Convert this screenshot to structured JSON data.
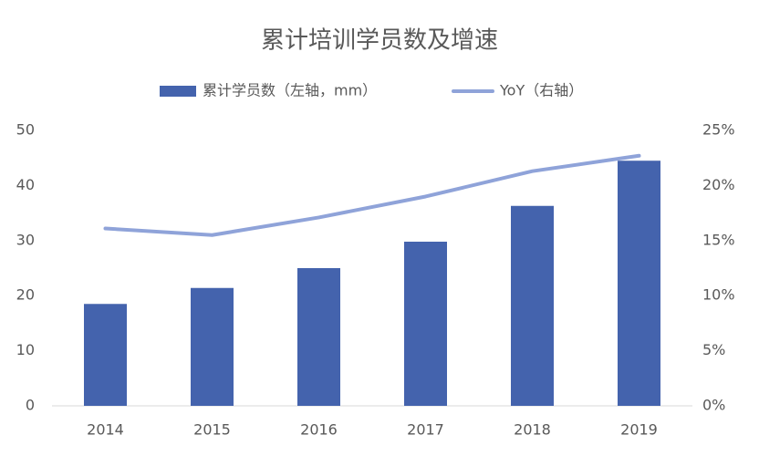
{
  "chart_data": {
    "type": "combo",
    "title": "累计培训学员数及增速",
    "categories": [
      "2014",
      "2015",
      "2016",
      "2017",
      "2018",
      "2019"
    ],
    "series": [
      {
        "name": "累计学员数（左轴，mm）",
        "type": "bar",
        "color": "#4463ad",
        "values": [
          18.5,
          21.4,
          25,
          29.8,
          36.3,
          44.5
        ]
      },
      {
        "name": "YoY（右轴）",
        "type": "line",
        "axis": "y2",
        "color": "#8fa3d9",
        "values": [
          16.1,
          15.5,
          17.1,
          19.0,
          21.3,
          22.7
        ]
      }
    ],
    "ylim": [
      0,
      50
    ],
    "yticks": [
      0,
      10,
      20,
      30,
      40,
      50
    ],
    "y2lim": [
      0,
      25
    ],
    "y2ticks": [
      {
        "value": 0,
        "label": "0%"
      },
      {
        "value": 5,
        "label": "5%"
      },
      {
        "value": 10,
        "label": "10%"
      },
      {
        "value": 15,
        "label": "15%"
      },
      {
        "value": 20,
        "label": "20%"
      },
      {
        "value": 25,
        "label": "25%"
      }
    ],
    "grid": false,
    "legend": "top"
  }
}
